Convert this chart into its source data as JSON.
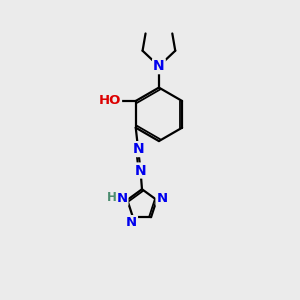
{
  "background_color": "#ebebeb",
  "atom_colors": {
    "N": "#0000ee",
    "O": "#dd0000",
    "C": "#000000",
    "H": "#4a8c6f"
  },
  "bond_color": "#000000",
  "figsize": [
    3.0,
    3.0
  ],
  "dpi": 100
}
